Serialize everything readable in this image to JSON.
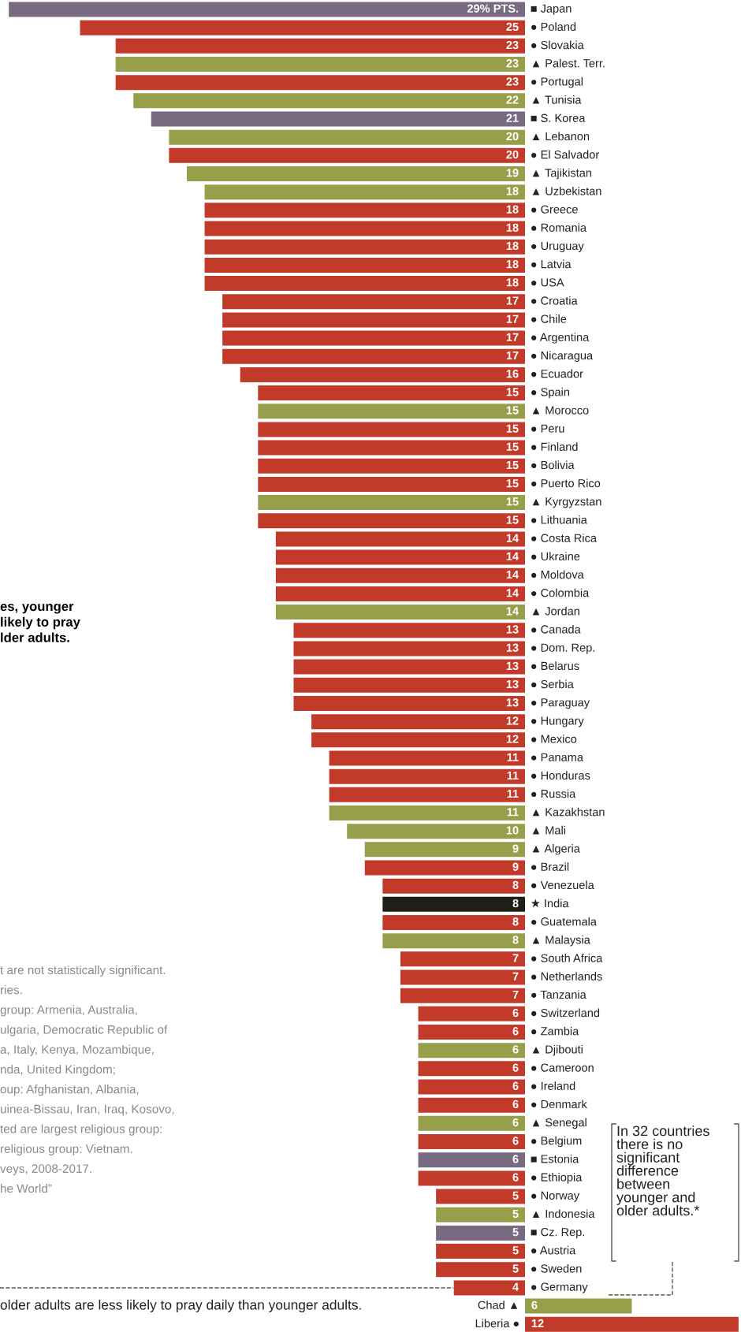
{
  "chart_data": [
    {
      "type": "bar",
      "orientation": "horizontal",
      "tick_labels": false,
      "categories": [
        "■ Japan",
        "● Poland",
        "● Slovakia",
        "▲ Palest. Terr.",
        "● Portugal",
        "▲ Tunisia",
        "■ S. Korea",
        "▲ Lebanon",
        "● El Salvador",
        "▲ Tajikistan",
        "▲ Uzbekistan",
        "● Greece",
        "● Romania",
        "● Uruguay",
        "● Latvia",
        "● USA",
        "● Croatia",
        "● Chile",
        "● Argentina",
        "● Nicaragua",
        "● Ecuador",
        "● Spain",
        "▲ Morocco",
        "● Peru",
        "● Finland",
        "● Bolivia",
        "● Puerto Rico",
        "▲ Kyrgyzstan",
        "● Lithuania",
        "● Costa Rica",
        "● Ukraine",
        "● Moldova",
        "● Colombia",
        "▲ Jordan",
        "● Canada",
        "● Dom. Rep.",
        "● Belarus",
        "● Serbia",
        "● Paraguay",
        "● Hungary",
        "● Mexico",
        "● Panama",
        "● Honduras",
        "● Russia",
        "▲ Kazakhstan",
        "▲ Mali",
        "▲ Algeria",
        "● Brazil",
        "● Venezuela",
        "★ India",
        "● Guatemala",
        "▲ Malaysia",
        "● South Africa",
        "● Netherlands",
        "● Tanzania",
        "● Switzerland",
        "● Zambia",
        "▲ Djibouti",
        "● Cameroon",
        "● Ireland",
        "● Denmark",
        "▲ Senegal",
        "● Belgium",
        "■ Estonia",
        "● Ethiopia",
        "● Norway",
        "▲ Indonesia",
        "■ Cz. Rep.",
        "● Austria",
        "● Sweden",
        "● Germany"
      ],
      "values": [
        29,
        25,
        23,
        23,
        23,
        22,
        21,
        20,
        20,
        19,
        18,
        18,
        18,
        18,
        18,
        18,
        17,
        17,
        17,
        17,
        16,
        15,
        15,
        15,
        15,
        15,
        15,
        15,
        15,
        14,
        14,
        14,
        14,
        14,
        13,
        13,
        13,
        13,
        13,
        12,
        12,
        11,
        11,
        11,
        11,
        10,
        9,
        9,
        8,
        8,
        8,
        8,
        7,
        7,
        7,
        6,
        6,
        6,
        6,
        6,
        6,
        6,
        6,
        6,
        6,
        5,
        5,
        5,
        5,
        5,
        4
      ],
      "value_labels": [
        "29% PTS.",
        "25",
        "23",
        "23",
        "23",
        "22",
        "21",
        "20",
        "20",
        "19",
        "18",
        "18",
        "18",
        "18",
        "18",
        "18",
        "17",
        "17",
        "17",
        "17",
        "16",
        "15",
        "15",
        "15",
        "15",
        "15",
        "15",
        "15",
        "15",
        "14",
        "14",
        "14",
        "14",
        "14",
        "13",
        "13",
        "13",
        "13",
        "13",
        "12",
        "12",
        "11",
        "11",
        "11",
        "11",
        "10",
        "9",
        "9",
        "8",
        "8",
        "8",
        "8",
        "7",
        "7",
        "7",
        "6",
        "6",
        "6",
        "6",
        "6",
        "6",
        "6",
        "6",
        "6",
        "6",
        "5",
        "5",
        "5",
        "5",
        "5",
        "4"
      ],
      "colors": [
        "#786a80",
        "#c23b2a",
        "#c23b2a",
        "#979f4a",
        "#c23b2a",
        "#979f4a",
        "#786a80",
        "#979f4a",
        "#c23b2a",
        "#979f4a",
        "#979f4a",
        "#c23b2a",
        "#c23b2a",
        "#c23b2a",
        "#c23b2a",
        "#c23b2a",
        "#c23b2a",
        "#c23b2a",
        "#c23b2a",
        "#c23b2a",
        "#c23b2a",
        "#c23b2a",
        "#979f4a",
        "#c23b2a",
        "#c23b2a",
        "#c23b2a",
        "#c23b2a",
        "#979f4a",
        "#c23b2a",
        "#c23b2a",
        "#c23b2a",
        "#c23b2a",
        "#c23b2a",
        "#979f4a",
        "#c23b2a",
        "#c23b2a",
        "#c23b2a",
        "#c23b2a",
        "#c23b2a",
        "#c23b2a",
        "#c23b2a",
        "#c23b2a",
        "#c23b2a",
        "#c23b2a",
        "#979f4a",
        "#979f4a",
        "#979f4a",
        "#c23b2a",
        "#c23b2a",
        "#1f1f18",
        "#c23b2a",
        "#979f4a",
        "#c23b2a",
        "#c23b2a",
        "#c23b2a",
        "#c23b2a",
        "#c23b2a",
        "#979f4a",
        "#c23b2a",
        "#c23b2a",
        "#c23b2a",
        "#979f4a",
        "#c23b2a",
        "#786a80",
        "#c23b2a",
        "#c23b2a",
        "#979f4a",
        "#786a80",
        "#c23b2a",
        "#c23b2a",
        "#c23b2a"
      ],
      "xlim": [
        29.5,
        0
      ],
      "annotations": [
        "es, younger\nlikely to pray\nlder adults.",
        "t are not statistically significant.",
        "ries.",
        "group: Armenia, Australia,",
        "ulgaria, Democratic Republic of",
        "a, Italy, Kenya, Mozambique,",
        "nda, United Kingdom;",
        "oup: Afghanistan, Albania,",
        "uinea-Bissau, Iran, Iraq, Kosovo,",
        "ted are largest religious group:",
        "religious group: Vietnam.",
        "veys, 2008-2017.",
        "he World”",
        "older adults are less likely to pray daily than younger adults.",
        "In 32 countries\nthere is no\nsignificant\ndifference\nbetween\nyounger and\nolder adults.*"
      ]
    },
    {
      "type": "bar",
      "orientation": "horizontal",
      "tick_labels": false,
      "categories": [
        "Chad ▲",
        "Liberia ●"
      ],
      "values": [
        6,
        12
      ],
      "data_labels": true,
      "colors": [
        "#979f4a",
        "#c23b2a"
      ]
    }
  ]
}
